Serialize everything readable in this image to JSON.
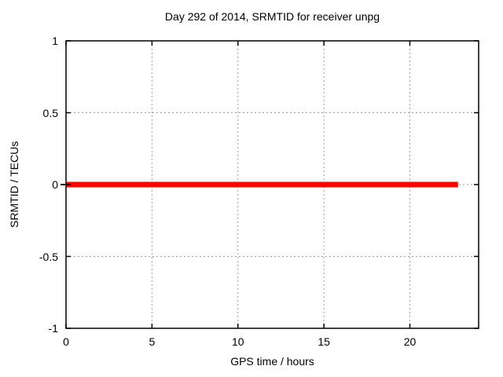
{
  "page": {
    "background": "#ffffff"
  },
  "chart_data": {
    "type": "line",
    "title": "Day 292 of 2014, SRMTID for receiver unpg",
    "xlabel": "GPS time / hours",
    "ylabel": "SRMTID / TECUs",
    "xlim": [
      0,
      24
    ],
    "ylim": [
      -1,
      1
    ],
    "xticks": [
      0,
      5,
      10,
      15,
      20
    ],
    "yticks": [
      -1,
      -0.5,
      0,
      0.5,
      1
    ],
    "grid": true,
    "grid_style": "dashed",
    "legend_position": "none",
    "series": [
      {
        "name": "SRMTID",
        "color": "#ff0000",
        "linewidth": 7,
        "x": [
          0,
          22.8
        ],
        "y": [
          0,
          0
        ]
      }
    ],
    "colors": {
      "axis": "#000000",
      "grid": "#a0a0a0",
      "text": "#000000",
      "background": "#ffffff"
    }
  }
}
